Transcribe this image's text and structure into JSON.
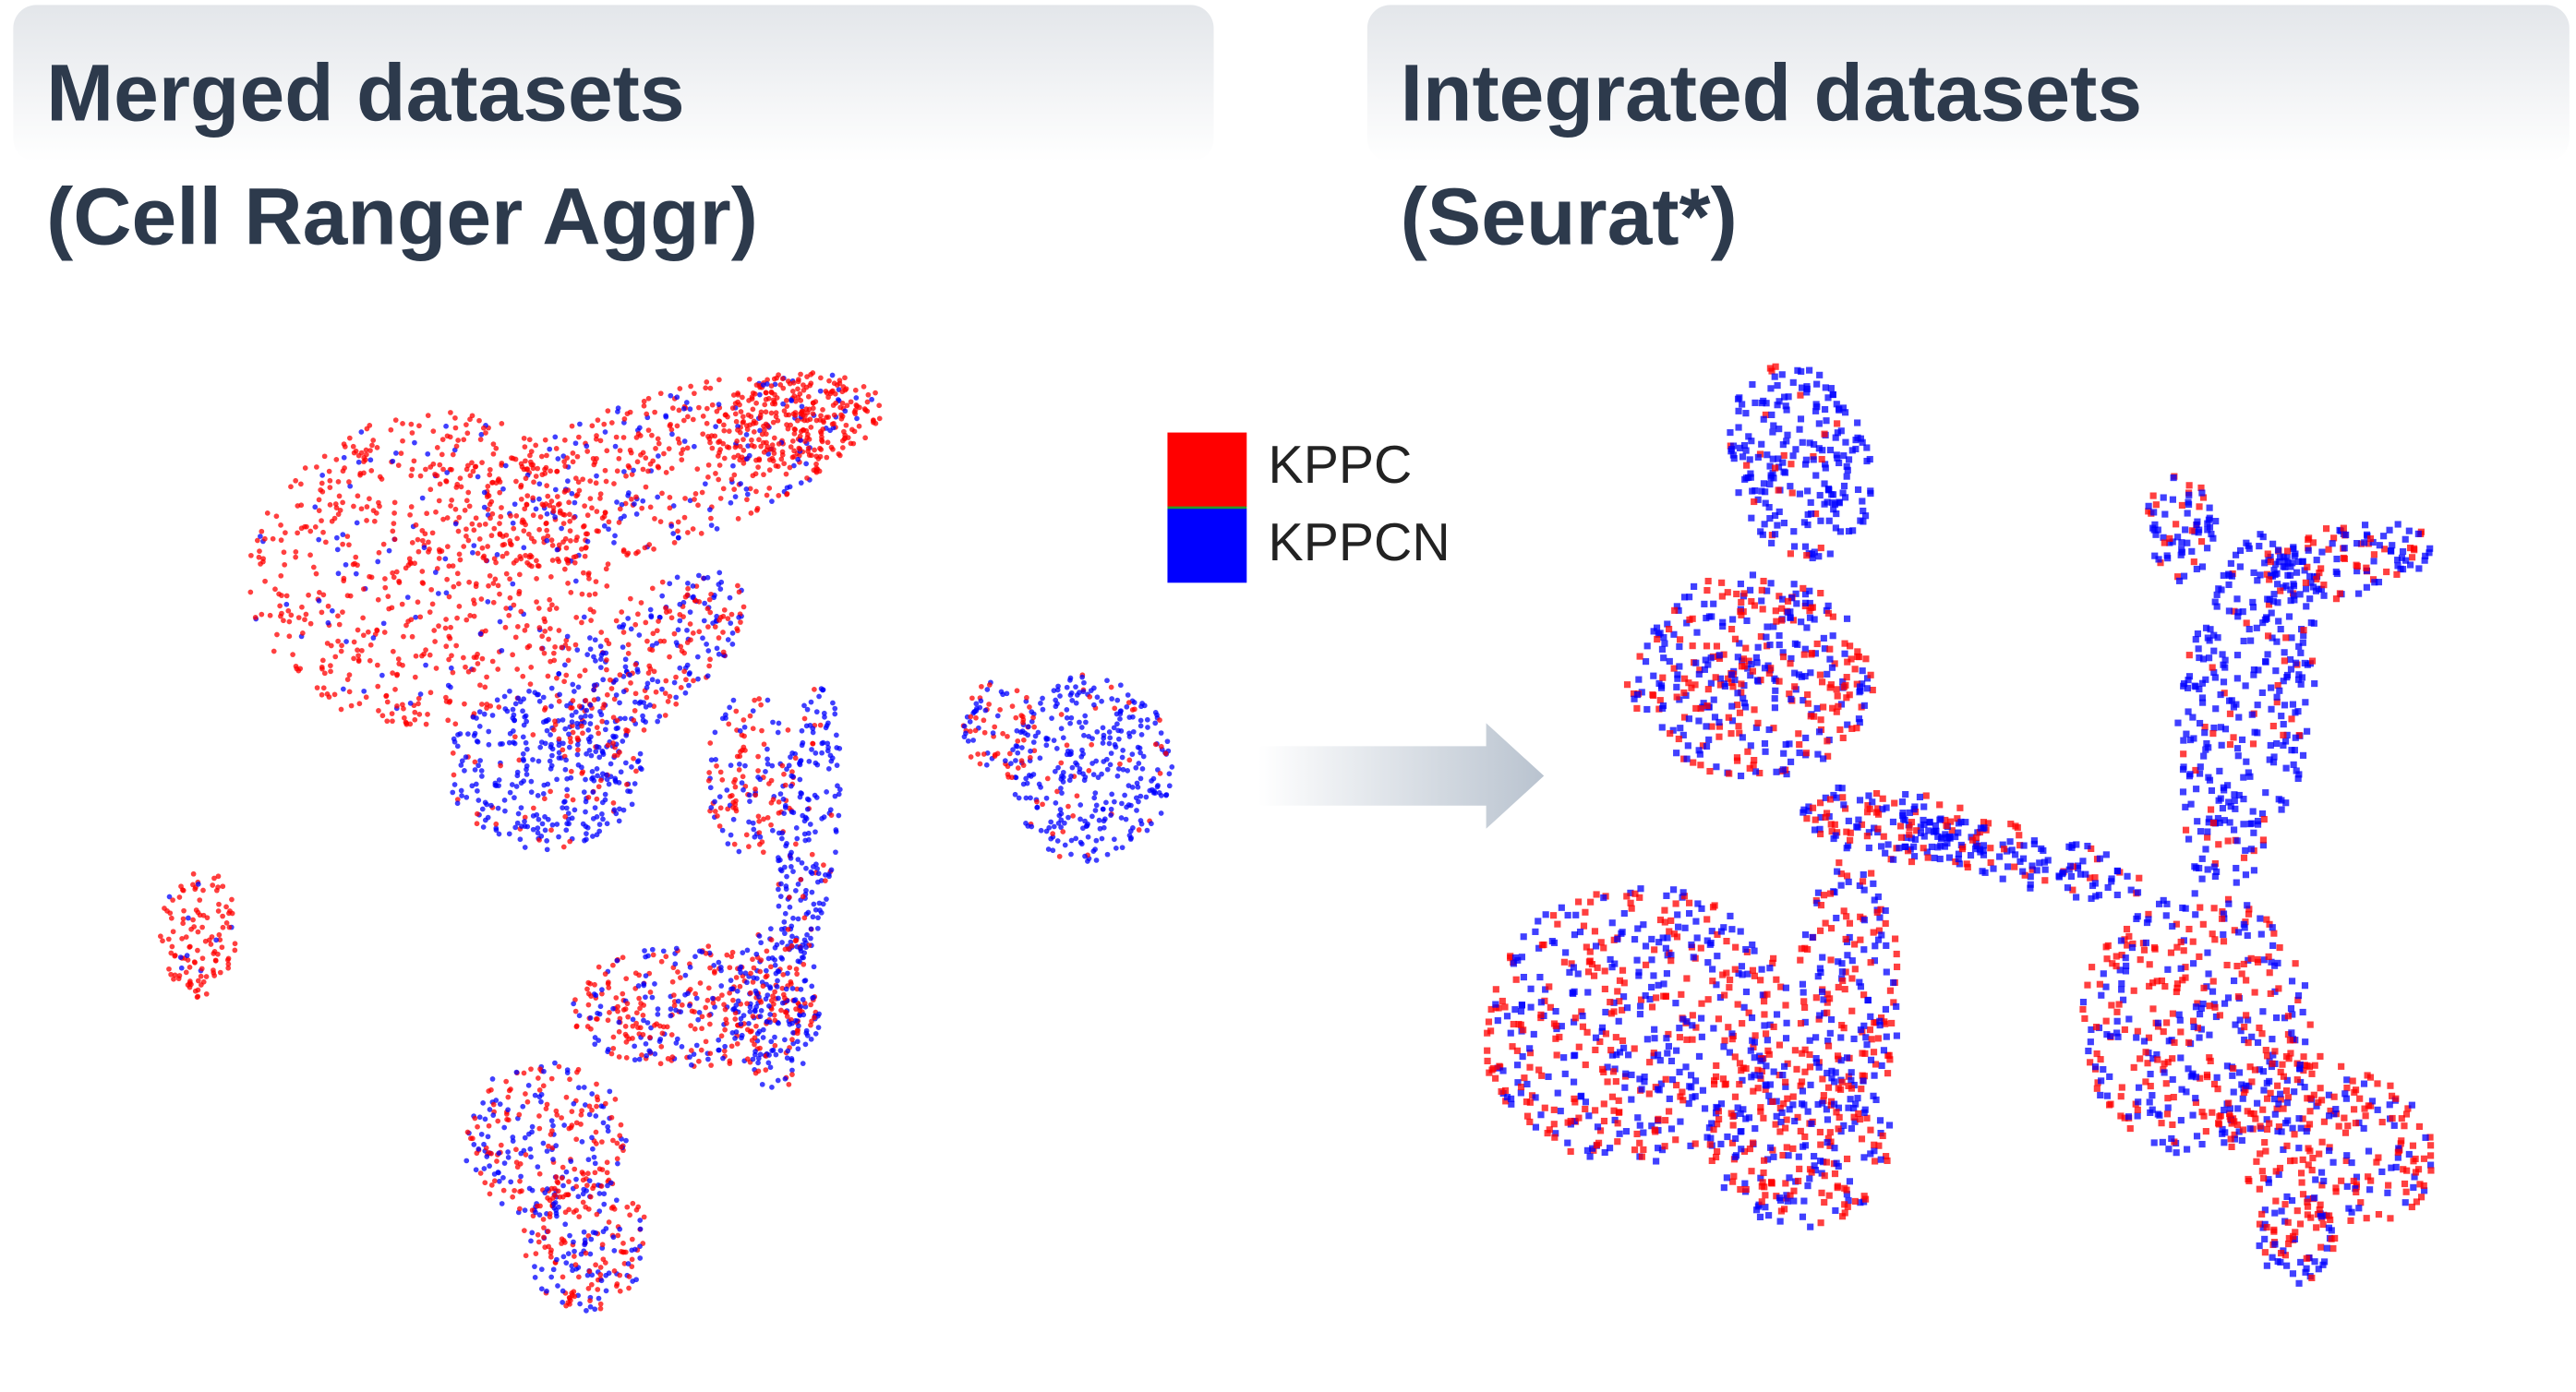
{
  "panels": [
    {
      "title_lines": [
        "Merged datasets",
        "(Cell Ranger Aggr)"
      ]
    },
    {
      "title_lines": [
        "Integrated datasets",
        "(Seurat*)"
      ]
    }
  ],
  "legend": [
    {
      "label": "KPPC",
      "color": "#ff0000"
    },
    {
      "label": "KPPCN",
      "color": "#0000ff"
    }
  ]
}
